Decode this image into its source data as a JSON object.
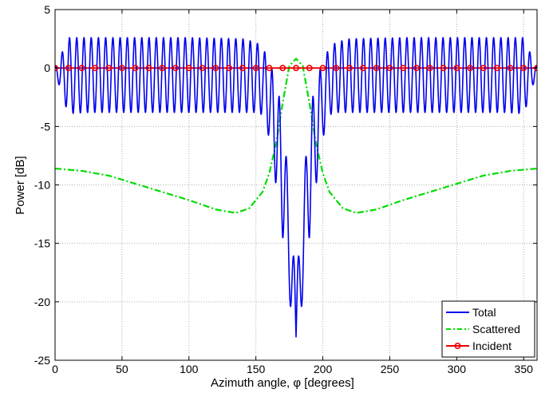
{
  "chart_data": {
    "type": "line",
    "xlabel": "Azimuth angle, φ [degrees]",
    "ylabel": "Power [dB]",
    "xlim": [
      0,
      360
    ],
    "ylim": [
      -25,
      5
    ],
    "xticks": [
      0,
      50,
      100,
      150,
      200,
      250,
      300,
      350
    ],
    "yticks": [
      -25,
      -20,
      -15,
      -10,
      -5,
      0,
      5
    ],
    "grid": true,
    "legend_position": "bottom-right",
    "colors": {
      "total": "#0000ee",
      "scattered": "#00dd00",
      "incident": "#ee0000"
    },
    "series": [
      {
        "name": "Total",
        "style": "solid",
        "oscillation_period_deg": 5.4,
        "envelope": {
          "x": [
            0,
            4,
            10,
            25,
            50,
            100,
            140,
            150,
            155,
            160,
            165,
            170,
            173,
            175,
            178,
            180
          ],
          "upper": [
            0.0,
            1.0,
            2.6,
            2.6,
            2.6,
            2.6,
            2.5,
            2.2,
            1.8,
            0.5,
            -1.0,
            -4.0,
            -8.0,
            -12.0,
            -16.0,
            -17.0
          ],
          "lower": [
            0.0,
            -2.0,
            -3.9,
            -3.8,
            -3.8,
            -3.8,
            -3.8,
            -3.8,
            -4.0,
            -6.0,
            -10.0,
            -14.5,
            -15.0,
            -19.0,
            -25.0,
            -25.0
          ]
        }
      },
      {
        "name": "Scattered",
        "style": "dashdot",
        "x": [
          0,
          20,
          40,
          60,
          80,
          100,
          120,
          135,
          145,
          155,
          160,
          165,
          170,
          175,
          180,
          185,
          190,
          195,
          200,
          205,
          215,
          225,
          240,
          260,
          280,
          300,
          320,
          340,
          360
        ],
        "y": [
          -8.6,
          -8.8,
          -9.2,
          -9.9,
          -10.6,
          -11.3,
          -12.1,
          -12.4,
          -12.0,
          -10.6,
          -9.0,
          -6.5,
          -3.0,
          0.2,
          0.8,
          0.2,
          -3.0,
          -6.5,
          -9.0,
          -10.6,
          -12.0,
          -12.4,
          -12.1,
          -11.3,
          -10.6,
          -9.9,
          -9.2,
          -8.8,
          -8.6
        ]
      },
      {
        "name": "Incident",
        "style": "solid-circle-markers",
        "x": [
          0,
          10,
          20,
          30,
          40,
          50,
          60,
          70,
          80,
          90,
          100,
          110,
          120,
          130,
          140,
          150,
          160,
          170,
          180,
          190,
          200,
          210,
          220,
          230,
          240,
          250,
          260,
          270,
          280,
          290,
          300,
          310,
          320,
          330,
          340,
          350,
          360
        ],
        "y": [
          0,
          0,
          0,
          0,
          0,
          0,
          0,
          0,
          0,
          0,
          0,
          0,
          0,
          0,
          0,
          0,
          0,
          0,
          0,
          0,
          0,
          0,
          0,
          0,
          0,
          0,
          0,
          0,
          0,
          0,
          0,
          0,
          0,
          0,
          0,
          0,
          0
        ]
      }
    ]
  }
}
